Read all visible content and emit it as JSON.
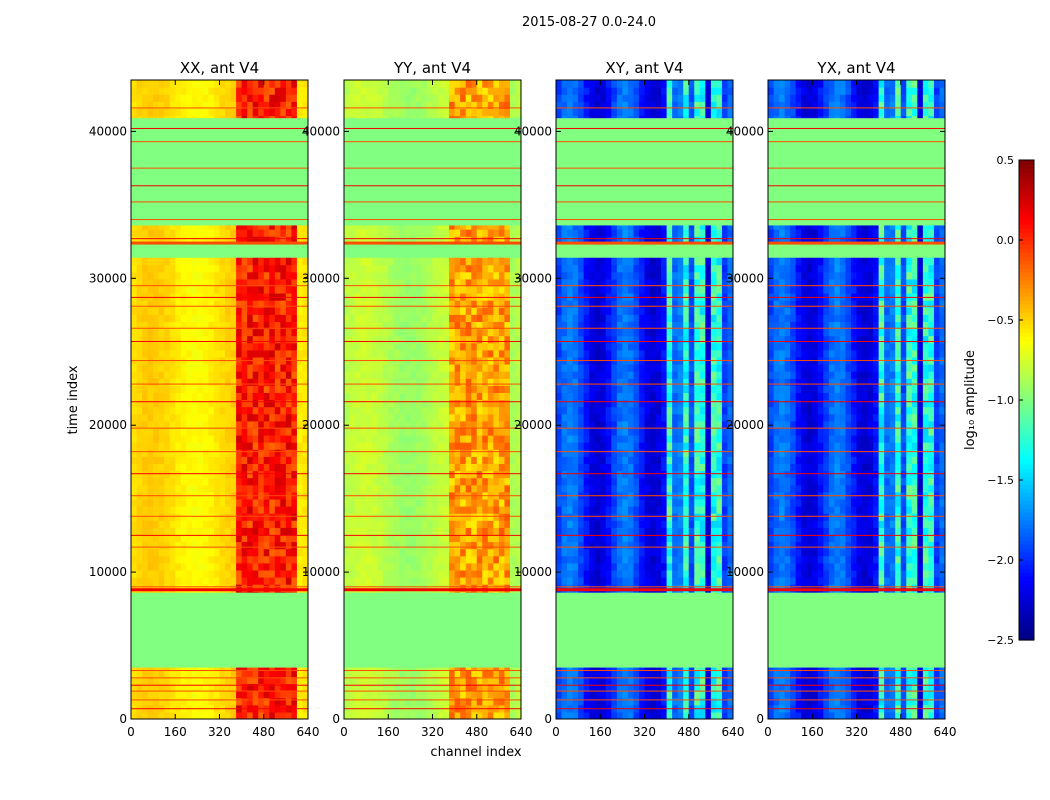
{
  "chart_data": {
    "type": "heatmap",
    "suptitle": "2015-08-27 0.0-24.0",
    "xlabel": "channel index",
    "ylabel": "time index",
    "xlim": [
      0,
      640
    ],
    "ylim": [
      0,
      43500
    ],
    "xticks": [
      "0",
      "160",
      "320",
      "480",
      "640"
    ],
    "yticks": [
      {
        "value": 0,
        "label": "0"
      },
      {
        "value": 10000,
        "label": "10000"
      },
      {
        "value": 20000,
        "label": "20000"
      },
      {
        "value": 30000,
        "label": "30000"
      },
      {
        "value": 40000,
        "label": "40000"
      }
    ],
    "colorbar": {
      "label": "log₁₀ amplitude",
      "vmin": -2.5,
      "vmax": 0.5,
      "ticks": [
        {
          "value": 0.5,
          "label": "0.5"
        },
        {
          "value": 0.0,
          "label": "0.0"
        },
        {
          "value": -0.5,
          "label": "−0.5"
        },
        {
          "value": -1.0,
          "label": "−1.0"
        },
        {
          "value": -1.5,
          "label": "−1.5"
        },
        {
          "value": -2.0,
          "label": "−2.0"
        },
        {
          "value": -2.5,
          "label": "−2.5"
        }
      ],
      "colormap": "jet"
    },
    "panels": [
      {
        "title": "XX, ant V4",
        "baseline": -0.55,
        "band_value": 0.05,
        "kind": "parallel"
      },
      {
        "title": "YY, ant V4",
        "baseline": -0.85,
        "band_value": -0.35,
        "kind": "parallel"
      },
      {
        "title": "XY, ant V4",
        "baseline": -2.0,
        "band_value": -1.25,
        "kind": "cross"
      },
      {
        "title": "YX, ant V4",
        "baseline": -2.0,
        "band_value": -1.25,
        "kind": "cross"
      }
    ],
    "flag_value": -1.0,
    "flagged_time_ranges": [
      [
        3500,
        8600
      ],
      [
        31400,
        32300
      ],
      [
        33600,
        40900
      ]
    ],
    "flag_line_times": [
      700,
      1300,
      1900,
      2300,
      2800,
      3300,
      8800,
      9000,
      11700,
      12500,
      13800,
      15200,
      16700,
      18200,
      19800,
      21600,
      22800,
      24400,
      25700,
      26600,
      28100,
      28700,
      29500,
      32400,
      32700,
      34000,
      35200,
      36300,
      37500,
      39300,
      40200,
      41600
    ]
  }
}
